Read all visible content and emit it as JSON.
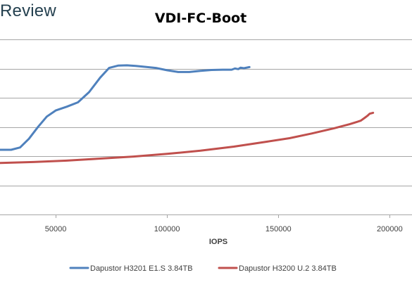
{
  "brand": {
    "text": "Review"
  },
  "chart_data": {
    "type": "line",
    "title": "VDI-FC-Boot",
    "xlabel": "IOPS",
    "ylabel": "",
    "xlim": [
      25000,
      210000
    ],
    "ylim": [
      0,
      0.7
    ],
    "x_ticks": [
      50000,
      100000,
      150000,
      200000
    ],
    "x_tick_labels": [
      "50000",
      "100000",
      "150000",
      "200000"
    ],
    "y_gridlines": [
      0.1,
      0.2,
      0.3,
      0.4,
      0.5,
      0.6
    ],
    "grid": "horizontal",
    "legend_position": "bottom",
    "series": [
      {
        "name": "Dapustor H3201 E1.S 3.84TB",
        "color": "#4f81bd",
        "points": [
          [
            25000,
            0.222
          ],
          [
            30000,
            0.222
          ],
          [
            34000,
            0.23
          ],
          [
            38000,
            0.26
          ],
          [
            42000,
            0.3
          ],
          [
            46000,
            0.336
          ],
          [
            50000,
            0.357
          ],
          [
            55000,
            0.37
          ],
          [
            60000,
            0.385
          ],
          [
            65000,
            0.42
          ],
          [
            70000,
            0.47
          ],
          [
            74000,
            0.503
          ],
          [
            78000,
            0.511
          ],
          [
            82000,
            0.512
          ],
          [
            86000,
            0.51
          ],
          [
            90000,
            0.507
          ],
          [
            95000,
            0.503
          ],
          [
            100000,
            0.495
          ],
          [
            105000,
            0.489
          ],
          [
            110000,
            0.489
          ],
          [
            115000,
            0.493
          ],
          [
            120000,
            0.496
          ],
          [
            125000,
            0.497
          ],
          [
            129000,
            0.497
          ],
          [
            130500,
            0.501
          ],
          [
            132000,
            0.499
          ],
          [
            133000,
            0.504
          ],
          [
            134500,
            0.502
          ],
          [
            137000,
            0.506
          ]
        ]
      },
      {
        "name": "Dapustor H3200 U.2 3.84TB",
        "color": "#c0504d",
        "points": [
          [
            25000,
            0.177
          ],
          [
            40000,
            0.18
          ],
          [
            55000,
            0.185
          ],
          [
            70000,
            0.192
          ],
          [
            85000,
            0.199
          ],
          [
            100000,
            0.208
          ],
          [
            115000,
            0.219
          ],
          [
            130000,
            0.233
          ],
          [
            145000,
            0.25
          ],
          [
            155000,
            0.262
          ],
          [
            165000,
            0.278
          ],
          [
            175000,
            0.296
          ],
          [
            182000,
            0.31
          ],
          [
            187000,
            0.322
          ],
          [
            189000,
            0.333
          ],
          [
            190000,
            0.339
          ],
          [
            191000,
            0.346
          ],
          [
            192500,
            0.349
          ]
        ]
      }
    ]
  }
}
